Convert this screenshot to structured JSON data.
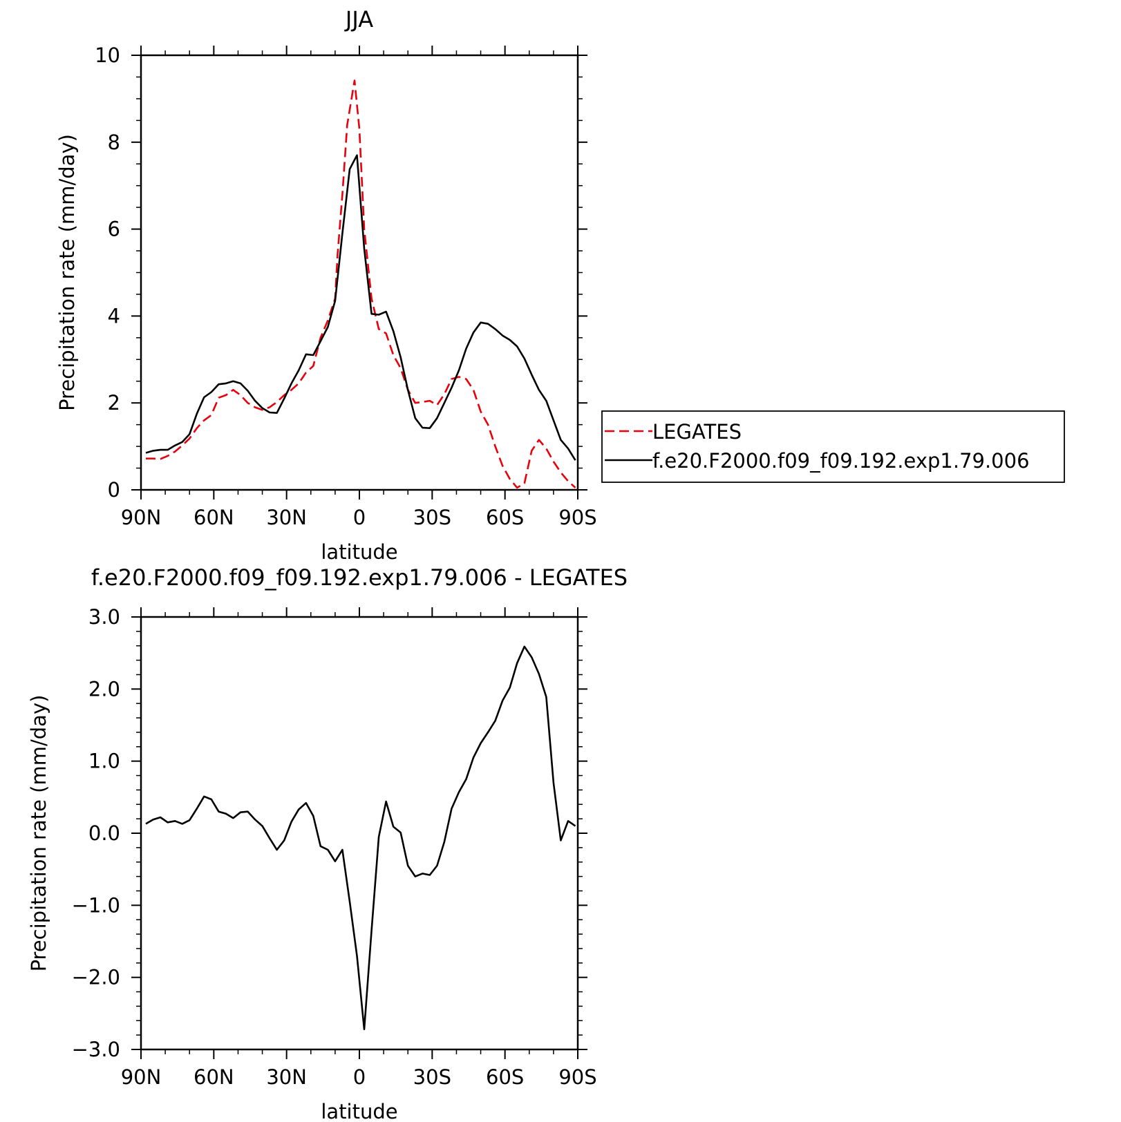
{
  "chart_data": [
    {
      "type": "line",
      "title": "JJA",
      "xlabel": "latitude",
      "ylabel": "Precipitation rate (mm/day)",
      "xlim": [
        90,
        -90
      ],
      "ylim": [
        0,
        10
      ],
      "xticks": [
        90,
        60,
        30,
        0,
        -30,
        -60,
        -90
      ],
      "xtick_labels": [
        "90N",
        "60N",
        "30N",
        "0",
        "30S",
        "60S",
        "90S"
      ],
      "yticks": [
        0,
        2,
        4,
        6,
        8,
        10
      ],
      "ytick_labels": [
        "0",
        "2",
        "4",
        "6",
        "8",
        "10"
      ],
      "legend_position": "right",
      "series": [
        {
          "name": "LEGATES",
          "color": "#e8000b",
          "dash": "dashed",
          "x": [
            88,
            85,
            82,
            79,
            76,
            73,
            70,
            67,
            64,
            61,
            58,
            55,
            52,
            49,
            46,
            43,
            40,
            37,
            34,
            31,
            28,
            25,
            22,
            19,
            16,
            13,
            10,
            9,
            7,
            5,
            2,
            0,
            -2,
            -5,
            -8,
            -11,
            -14,
            -17,
            -20,
            -23,
            -26,
            -29,
            -32,
            -35,
            -38,
            -41,
            -44,
            -47,
            -50,
            -53,
            -56,
            -59,
            -62,
            -65,
            -68,
            -71,
            -74,
            -77,
            -80,
            -83,
            -86,
            -89
          ],
          "y": [
            0.72,
            0.72,
            0.71,
            0.78,
            0.88,
            1.02,
            1.18,
            1.42,
            1.6,
            1.72,
            2.12,
            2.18,
            2.3,
            2.18,
            2.0,
            1.9,
            1.84,
            1.9,
            2.02,
            2.18,
            2.3,
            2.45,
            2.7,
            2.85,
            3.5,
            3.9,
            4.4,
            5.4,
            6.8,
            8.4,
            9.42,
            8.3,
            6.0,
            4.4,
            3.7,
            3.6,
            3.1,
            2.8,
            2.3,
            2.0,
            2.02,
            2.05,
            1.95,
            2.2,
            2.55,
            2.6,
            2.55,
            2.3,
            1.8,
            1.5,
            1.0,
            0.55,
            0.25,
            0.05,
            0.15,
            0.9,
            1.15,
            0.95,
            0.65,
            0.4,
            0.2,
            0.05
          ]
        },
        {
          "name": "f.e20.F2000.f09_f09.192.exp1.79.006",
          "color": "#000000",
          "dash": "solid",
          "x": [
            88,
            85,
            82,
            79,
            76,
            73,
            70,
            67,
            64,
            61,
            58,
            55,
            52,
            49,
            46,
            43,
            40,
            37,
            34,
            31,
            28,
            25,
            22,
            19,
            16,
            13,
            10,
            7,
            4,
            1,
            -2,
            -5,
            -8,
            -11,
            -14,
            -17,
            -20,
            -23,
            -26,
            -29,
            -32,
            -35,
            -38,
            -41,
            -44,
            -47,
            -50,
            -53,
            -56,
            -59,
            -62,
            -65,
            -68,
            -71,
            -74,
            -77,
            -80,
            -83,
            -86,
            -89
          ],
          "y": [
            0.85,
            0.9,
            0.92,
            0.92,
            1.02,
            1.1,
            1.28,
            1.75,
            2.13,
            2.25,
            2.43,
            2.45,
            2.5,
            2.45,
            2.28,
            2.05,
            1.88,
            1.78,
            1.77,
            2.1,
            2.45,
            2.75,
            3.12,
            3.1,
            3.42,
            3.75,
            4.35,
            5.9,
            7.38,
            7.7,
            5.55,
            4.05,
            4.03,
            4.1,
            3.65,
            3.05,
            2.3,
            1.65,
            1.43,
            1.42,
            1.65,
            2.0,
            2.35,
            2.75,
            3.25,
            3.62,
            3.85,
            3.82,
            3.7,
            3.55,
            3.45,
            3.3,
            3.02,
            2.65,
            2.3,
            2.05,
            1.6,
            1.15,
            0.95,
            0.68
          ]
        }
      ]
    },
    {
      "type": "line",
      "title": "f.e20.F2000.f09_f09.192.exp1.79.006 - LEGATES",
      "xlabel": "latitude",
      "ylabel": "Precipitation rate (mm/day)",
      "xlim": [
        90,
        -90
      ],
      "ylim": [
        -3.0,
        3.0
      ],
      "xticks": [
        90,
        60,
        30,
        0,
        -30,
        -60,
        -90
      ],
      "xtick_labels": [
        "90N",
        "60N",
        "30N",
        "0",
        "30S",
        "60S",
        "90S"
      ],
      "yticks": [
        -3.0,
        -2.0,
        -1.0,
        0.0,
        1.0,
        2.0,
        3.0
      ],
      "ytick_labels": [
        "−3.0",
        "−2.0",
        "−1.0",
        "0.0",
        "1.0",
        "2.0",
        "3.0"
      ],
      "series": [
        {
          "color": "#000000",
          "dash": "solid",
          "x": [
            88,
            85,
            82,
            79,
            76,
            73,
            70,
            67,
            64,
            61,
            58,
            55,
            52,
            49,
            46,
            43,
            40,
            37,
            34,
            31,
            28,
            25,
            22,
            19,
            16,
            13,
            10,
            7,
            4,
            1,
            -2,
            -5,
            -8,
            -11,
            -14,
            -17,
            -20,
            -23,
            -26,
            -29,
            -32,
            -35,
            -38,
            -41,
            -44,
            -47,
            -50,
            -53,
            -56,
            -59,
            -62,
            -65,
            -68,
            -71,
            -74,
            -77,
            -80,
            -83,
            -86,
            -89
          ],
          "y": [
            0.13,
            0.19,
            0.22,
            0.15,
            0.17,
            0.13,
            0.18,
            0.34,
            0.51,
            0.47,
            0.3,
            0.27,
            0.21,
            0.29,
            0.3,
            0.19,
            0.1,
            -0.07,
            -0.23,
            -0.1,
            0.16,
            0.33,
            0.42,
            0.24,
            -0.18,
            -0.23,
            -0.39,
            -0.23,
            -0.95,
            -1.7,
            -2.72,
            -1.35,
            -0.05,
            0.44,
            0.09,
            0.01,
            -0.45,
            -0.6,
            -0.56,
            -0.58,
            -0.45,
            -0.12,
            0.34,
            0.57,
            0.75,
            1.05,
            1.25,
            1.4,
            1.56,
            1.84,
            2.02,
            2.36,
            2.59,
            2.44,
            2.21,
            1.89,
            0.7,
            -0.1,
            0.17,
            0.1
          ]
        }
      ]
    }
  ]
}
